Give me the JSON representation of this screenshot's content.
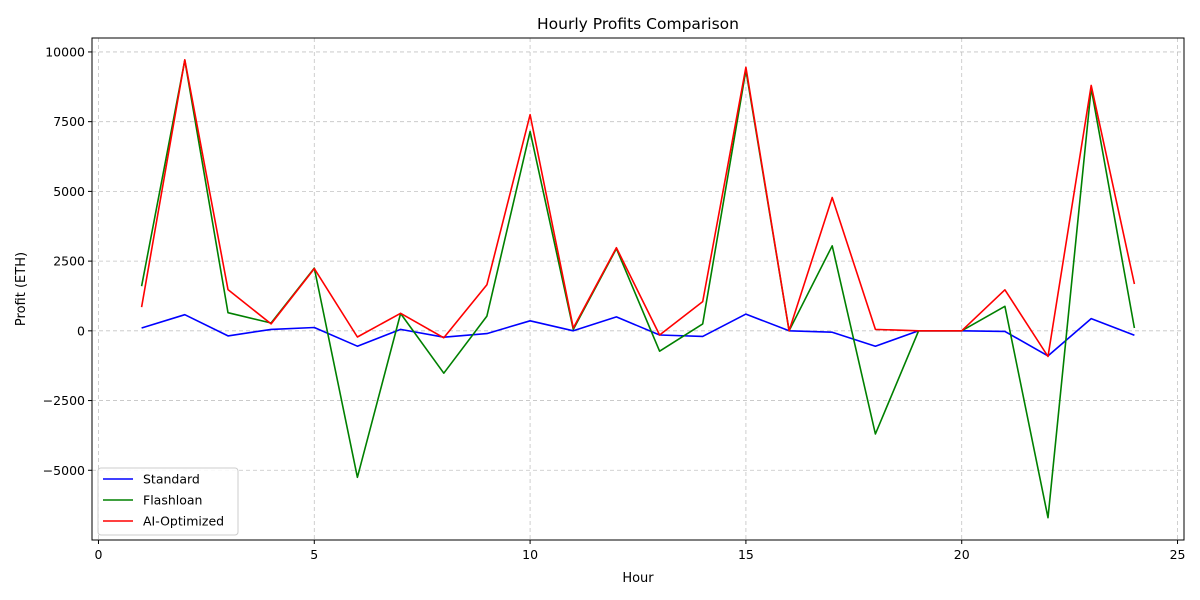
{
  "chart_data": {
    "type": "line",
    "title": "Hourly Profits Comparison",
    "xlabel": "Hour",
    "ylabel": "Profit (ETH)",
    "xlim": [
      -0.15,
      25.15
    ],
    "ylim": [
      -7500,
      10500
    ],
    "xticks": [
      0,
      5,
      10,
      15,
      20,
      25
    ],
    "yticks": [
      -5000,
      -2500,
      0,
      2500,
      5000,
      7500,
      10000
    ],
    "grid": true,
    "legend_position": "lower-left",
    "x": [
      1,
      2,
      3,
      4,
      5,
      6,
      7,
      8,
      9,
      10,
      11,
      12,
      13,
      14,
      15,
      16,
      17,
      18,
      19,
      20,
      21,
      22,
      23,
      24
    ],
    "series": [
      {
        "name": "Standard",
        "color": "#0000ff",
        "values": [
          100,
          580,
          -180,
          50,
          120,
          -550,
          50,
          -230,
          -100,
          360,
          0,
          500,
          -150,
          -200,
          600,
          0,
          -50,
          -550,
          0,
          0,
          -20,
          -900,
          440,
          -160
        ]
      },
      {
        "name": "Flashloan",
        "color": "#008000",
        "values": [
          1600,
          9700,
          650,
          280,
          2250,
          -5250,
          620,
          -1520,
          530,
          7150,
          50,
          2950,
          -730,
          250,
          9350,
          0,
          3050,
          -3700,
          0,
          0,
          880,
          -6700,
          8700,
          100
        ]
      },
      {
        "name": "AI-Optimized",
        "color": "#ff0000",
        "values": [
          850,
          9720,
          1480,
          250,
          2230,
          -220,
          630,
          -250,
          1650,
          7750,
          100,
          2980,
          -150,
          1050,
          9450,
          0,
          4780,
          50,
          0,
          0,
          1470,
          -920,
          8800,
          1680
        ]
      }
    ]
  }
}
